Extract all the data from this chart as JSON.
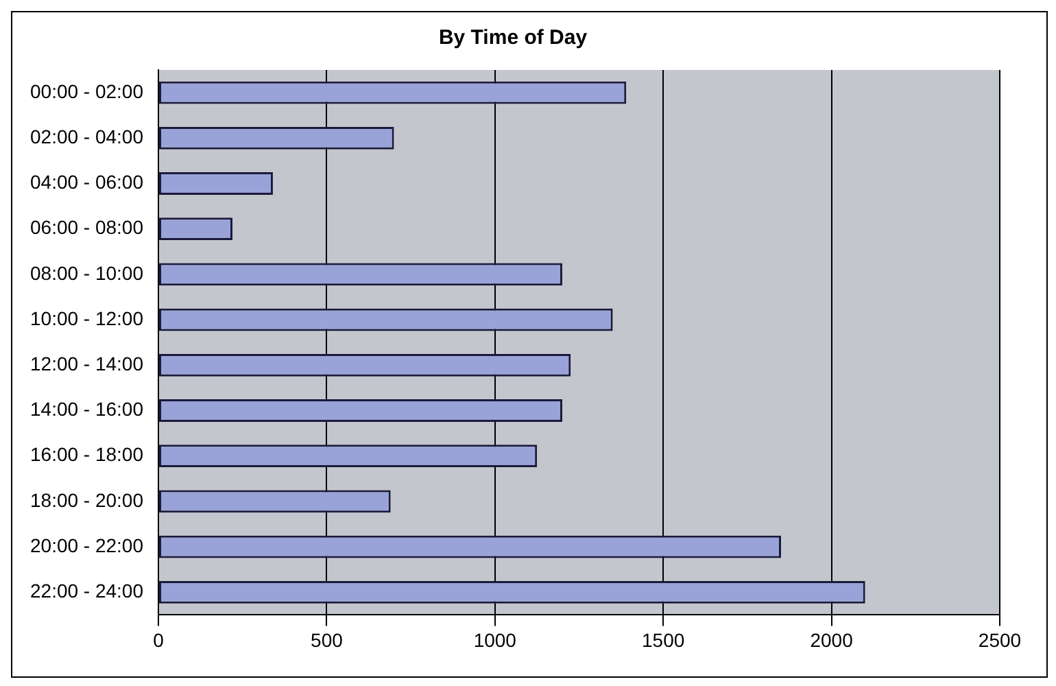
{
  "chart_data": {
    "type": "bar",
    "orientation": "horizontal",
    "title": "By Time of Day",
    "categories": [
      "00:00 - 02:00",
      "02:00 - 04:00",
      "04:00 - 06:00",
      "06:00 - 08:00",
      "08:00 - 10:00",
      "10:00 - 12:00",
      "12:00 - 14:00",
      "14:00 - 16:00",
      "16:00 - 18:00",
      "18:00 - 20:00",
      "20:00 - 22:00",
      "22:00 - 24:00"
    ],
    "values": [
      1390,
      700,
      340,
      220,
      1200,
      1350,
      1225,
      1200,
      1125,
      690,
      1850,
      2100
    ],
    "color": "#9aa3d8",
    "xlim": [
      0,
      2500
    ],
    "xticks": [
      0,
      500,
      1000,
      1500,
      2000,
      2500
    ],
    "grid": "x",
    "legend": false
  }
}
